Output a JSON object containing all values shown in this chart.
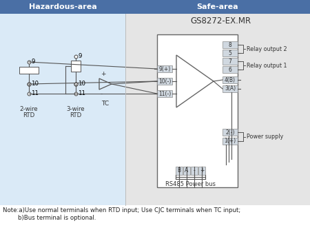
{
  "title_text": "GS8272-EX.MR",
  "header_hazardous": "Hazardous-area",
  "header_safe": "Safe-area",
  "header_bg": "#4a6fa5",
  "header_fg": "#ffffff",
  "hazardous_bg": "#daeaf7",
  "safe_bg": "#e5e5e5",
  "note_line1": "Note:a)Use normal terminals when RTD input; Use CJC terminals when TC input;",
  "note_line2": "        b)Bus terminal is optional.",
  "relay_output2_label": "Relay output 2",
  "relay_output1_label": "Relay output 1",
  "power_supply_label": "Power supply",
  "rs485_label": "RS485 Power bus",
  "wire_color": "#555555",
  "box_edge_color": "#666666",
  "terminal_bg": "#d0d8e0",
  "terminal_edge": "#888888"
}
